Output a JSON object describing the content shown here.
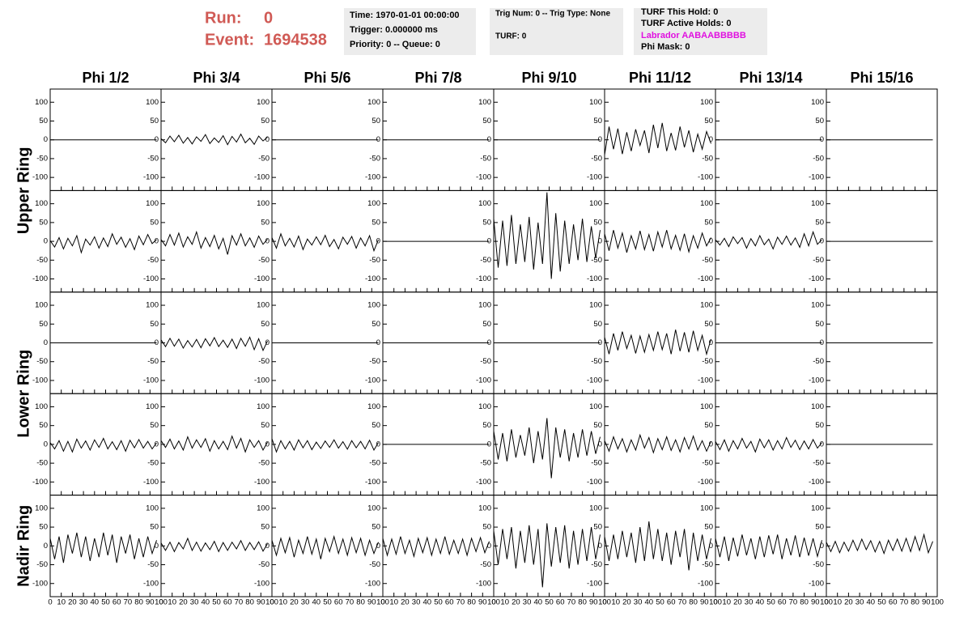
{
  "header": {
    "run_label": "Run:",
    "run": 0,
    "event_label": "Event:",
    "event": 1694538,
    "time": "Time: 1970-01-01 00:00:00",
    "trigger": "Trigger: 0.000000 ms",
    "priority": "Priority: 0 -- Queue: 0",
    "trig": "Trig Num: 0 -- Trig Type: None",
    "turf": "TURF: 0",
    "turf_hold": "TURF This Hold: 0",
    "turf_active": "TURF Active Holds: 0",
    "labrador": "Labrador AABAABBBBB",
    "phi_mask": "Phi Mask: 0"
  },
  "chart_data": {
    "type": "line",
    "columns": [
      "Phi 1/2",
      "Phi 3/4",
      "Phi 5/6",
      "Phi 7/8",
      "Phi 9/10",
      "Phi 11/12",
      "Phi 13/14",
      "Phi 15/16"
    ],
    "ring_labels": [
      "Upper Ring",
      "Lower Ring",
      "Nadir Ring"
    ],
    "color": "#000000",
    "xlim": [
      0,
      100
    ],
    "xticks": [
      0,
      10,
      20,
      30,
      40,
      50,
      60,
      70,
      80,
      90,
      100
    ],
    "ylim": [
      -135,
      135
    ],
    "yticks": [
      -100,
      -50,
      0,
      50,
      100
    ],
    "x": [
      0,
      4,
      8,
      12,
      16,
      20,
      24,
      28,
      32,
      36,
      40,
      44,
      48,
      52,
      56,
      60,
      64,
      68,
      72,
      76,
      80,
      84,
      88,
      92,
      96
    ],
    "panels": [
      [
        [
          0,
          0,
          0,
          0,
          0,
          0,
          0,
          0,
          0,
          0,
          0,
          0,
          0,
          0,
          0,
          0,
          0,
          0,
          0,
          0,
          0,
          0,
          0,
          0,
          0
        ],
        [
          3,
          -8,
          10,
          -5,
          12,
          -9,
          6,
          -11,
          8,
          -4,
          14,
          -10,
          5,
          -7,
          11,
          -13,
          9,
          -6,
          15,
          -8,
          4,
          -12,
          10,
          -3,
          7
        ],
        [
          0,
          0,
          0,
          0,
          0,
          0,
          0,
          0,
          0,
          0,
          0,
          0,
          0,
          0,
          0,
          0,
          0,
          0,
          0,
          0,
          0,
          0,
          0,
          0,
          0
        ],
        [
          0,
          0,
          0,
          0,
          0,
          0,
          0,
          0,
          0,
          0,
          0,
          0,
          0,
          0,
          0,
          0,
          0,
          0,
          0,
          0,
          0,
          0,
          0,
          0,
          0
        ],
        [
          0,
          0,
          0,
          0,
          0,
          0,
          0,
          0,
          0,
          0,
          0,
          0,
          0,
          0,
          0,
          0,
          0,
          0,
          0,
          0,
          0,
          0,
          0,
          0,
          0
        ],
        [
          -40,
          35,
          -25,
          30,
          -38,
          20,
          -30,
          28,
          -15,
          25,
          -35,
          40,
          -22,
          45,
          -30,
          18,
          -28,
          35,
          -20,
          25,
          -33,
          15,
          -25,
          22,
          -10
        ],
        [
          0,
          0,
          0,
          0,
          0,
          0,
          0,
          0,
          0,
          0,
          0,
          0,
          0,
          0,
          0,
          0,
          0,
          0,
          0,
          0,
          0,
          0,
          0,
          0,
          0
        ],
        [
          0,
          0,
          0,
          0,
          0,
          0,
          0,
          0,
          0,
          0,
          0,
          0,
          0,
          0,
          0,
          0,
          0,
          0,
          0,
          0,
          0,
          0,
          0,
          0,
          0
        ]
      ],
      [
        [
          2,
          -15,
          10,
          -20,
          8,
          -12,
          15,
          -30,
          6,
          -10,
          12,
          -18,
          9,
          -14,
          20,
          -8,
          11,
          -16,
          7,
          -22,
          14,
          -9,
          18,
          -6,
          5
        ],
        [
          5,
          -12,
          18,
          -10,
          22,
          -15,
          12,
          -8,
          25,
          -18,
          10,
          -14,
          16,
          -20,
          8,
          -35,
          15,
          -10,
          20,
          -12,
          9,
          -16,
          14,
          -8,
          6
        ],
        [
          10,
          -18,
          20,
          -12,
          8,
          -15,
          14,
          -22,
          6,
          -10,
          12,
          -9,
          16,
          -14,
          5,
          -20,
          11,
          -8,
          13,
          -18,
          9,
          -12,
          15,
          -25,
          4
        ],
        [
          0,
          0,
          0,
          0,
          0,
          0,
          0,
          0,
          0,
          0,
          0,
          0,
          0,
          0,
          0,
          0,
          0,
          0,
          0,
          0,
          0,
          0,
          0,
          0,
          0
        ],
        [
          60,
          -70,
          55,
          -65,
          70,
          -60,
          45,
          -55,
          65,
          -75,
          50,
          -60,
          130,
          -100,
          75,
          -80,
          55,
          -60,
          45,
          -50,
          60,
          -55,
          40,
          -45,
          30
        ],
        [
          20,
          -25,
          30,
          -18,
          22,
          -30,
          15,
          -20,
          28,
          -22,
          18,
          -26,
          25,
          -15,
          30,
          -20,
          16,
          -24,
          20,
          -28,
          15,
          -18,
          22,
          -12,
          10
        ],
        [
          4,
          -10,
          8,
          -14,
          12,
          -6,
          10,
          -18,
          7,
          -12,
          15,
          -9,
          6,
          -20,
          11,
          -8,
          14,
          -10,
          9,
          -16,
          20,
          -12,
          25,
          -8,
          5
        ],
        [
          0,
          0,
          0,
          0,
          0,
          0,
          0,
          0,
          0,
          0,
          0,
          0,
          0,
          0,
          0,
          0,
          0,
          0,
          0,
          0,
          0,
          0,
          0,
          0,
          0
        ]
      ],
      [
        [
          0,
          0,
          0,
          0,
          0,
          0,
          0,
          0,
          0,
          0,
          0,
          0,
          0,
          0,
          0,
          0,
          0,
          0,
          0,
          0,
          0,
          0,
          0,
          0,
          0
        ],
        [
          8,
          -10,
          12,
          -9,
          10,
          -14,
          6,
          -11,
          9,
          -13,
          11,
          -8,
          14,
          -10,
          7,
          -12,
          10,
          -15,
          12,
          -9,
          15,
          -18,
          11,
          -20,
          5
        ],
        [
          0,
          0,
          0,
          0,
          0,
          0,
          0,
          0,
          0,
          0,
          0,
          0,
          0,
          0,
          0,
          0,
          0,
          0,
          0,
          0,
          0,
          0,
          0,
          0,
          0
        ],
        [
          0,
          0,
          0,
          0,
          0,
          0,
          0,
          0,
          0,
          0,
          0,
          0,
          0,
          0,
          0,
          0,
          0,
          0,
          0,
          0,
          0,
          0,
          0,
          0,
          0
        ],
        [
          0,
          0,
          0,
          0,
          0,
          0,
          0,
          0,
          0,
          0,
          0,
          0,
          0,
          0,
          0,
          0,
          0,
          0,
          0,
          0,
          0,
          0,
          0,
          0,
          0
        ],
        [
          15,
          -30,
          25,
          -20,
          30,
          -15,
          20,
          -28,
          18,
          -25,
          22,
          -20,
          30,
          -18,
          25,
          -30,
          35,
          -22,
          28,
          -25,
          32,
          -20,
          20,
          -30,
          10
        ],
        [
          0,
          0,
          0,
          0,
          0,
          0,
          0,
          0,
          0,
          0,
          0,
          0,
          0,
          0,
          0,
          0,
          0,
          0,
          0,
          0,
          0,
          0,
          0,
          0,
          0
        ],
        [
          0,
          0,
          0,
          0,
          0,
          0,
          0,
          0,
          0,
          0,
          0,
          0,
          0,
          0,
          0,
          0,
          0,
          0,
          0,
          0,
          0,
          0,
          0,
          0,
          0
        ]
      ],
      [
        [
          5,
          -12,
          10,
          -18,
          8,
          -20,
          14,
          -10,
          9,
          -15,
          12,
          -8,
          16,
          -12,
          7,
          -14,
          10,
          -18,
          11,
          -9,
          13,
          -10,
          8,
          -12,
          4
        ],
        [
          10,
          -8,
          14,
          -12,
          9,
          -15,
          20,
          -10,
          12,
          -8,
          15,
          -18,
          10,
          -12,
          8,
          -14,
          22,
          -10,
          16,
          -20,
          12,
          -8,
          10,
          -15,
          6
        ],
        [
          15,
          -20,
          10,
          -12,
          8,
          -15,
          12,
          -9,
          10,
          -14,
          6,
          -11,
          9,
          -8,
          12,
          -10,
          7,
          -13,
          10,
          -9,
          8,
          -12,
          11,
          -15,
          5
        ],
        [
          0,
          0,
          0,
          0,
          0,
          0,
          0,
          0,
          0,
          0,
          0,
          0,
          0,
          0,
          0,
          0,
          0,
          0,
          0,
          0,
          0,
          0,
          0,
          0,
          0
        ],
        [
          35,
          -40,
          30,
          -45,
          40,
          -35,
          25,
          -30,
          45,
          -50,
          35,
          -40,
          70,
          -90,
          45,
          -35,
          40,
          -45,
          30,
          -35,
          40,
          -30,
          35,
          -25,
          20
        ],
        [
          10,
          -18,
          20,
          -12,
          15,
          -20,
          12,
          -15,
          25,
          -10,
          18,
          -22,
          15,
          -14,
          20,
          -16,
          12,
          -20,
          18,
          -12,
          22,
          -15,
          10,
          -18,
          8
        ],
        [
          8,
          -14,
          12,
          -18,
          10,
          -12,
          16,
          -10,
          8,
          -20,
          14,
          -9,
          12,
          -15,
          10,
          -12,
          18,
          -8,
          11,
          -14,
          9,
          -12,
          13,
          -10,
          5
        ],
        [
          0,
          0,
          0,
          0,
          0,
          0,
          0,
          0,
          0,
          0,
          0,
          0,
          0,
          0,
          0,
          0,
          0,
          0,
          0,
          0,
          0,
          0,
          0,
          0,
          0
        ]
      ],
      [
        [
          20,
          -35,
          25,
          -45,
          30,
          -20,
          35,
          -30,
          25,
          -40,
          20,
          -30,
          35,
          -25,
          30,
          -45,
          25,
          -20,
          30,
          -35,
          20,
          -30,
          25,
          -20,
          15
        ],
        [
          8,
          -12,
          10,
          -15,
          9,
          -8,
          20,
          -12,
          10,
          -14,
          8,
          -10,
          12,
          -15,
          9,
          -12,
          10,
          -8,
          14,
          -12,
          9,
          -10,
          11,
          -14,
          6
        ],
        [
          15,
          -25,
          20,
          -18,
          22,
          -30,
          15,
          -20,
          25,
          -22,
          18,
          -35,
          20,
          -15,
          25,
          -20,
          18,
          -25,
          22,
          -18,
          20,
          -25,
          15,
          -20,
          10
        ],
        [
          20,
          -25,
          18,
          -22,
          25,
          -20,
          15,
          -28,
          20,
          -18,
          22,
          -25,
          18,
          -20,
          25,
          -22,
          15,
          -20,
          18,
          -25,
          20,
          -15,
          22,
          -18,
          12
        ],
        [
          40,
          -50,
          45,
          -35,
          50,
          -60,
          40,
          -45,
          55,
          -50,
          45,
          -110,
          60,
          -55,
          50,
          -45,
          55,
          -60,
          40,
          -50,
          45,
          -40,
          50,
          -35,
          30
        ],
        [
          25,
          -40,
          30,
          -35,
          40,
          -30,
          35,
          -45,
          50,
          -40,
          65,
          -35,
          45,
          -40,
          35,
          -50,
          40,
          -30,
          45,
          -65,
          35,
          -40,
          30,
          -35,
          20
        ],
        [
          20,
          -30,
          25,
          -40,
          22,
          -28,
          30,
          -25,
          20,
          -35,
          25,
          -30,
          28,
          -22,
          30,
          -35,
          20,
          -25,
          28,
          -30,
          22,
          -26,
          20,
          -28,
          15
        ],
        [
          10,
          -15,
          12,
          -18,
          10,
          -14,
          15,
          -12,
          18,
          -10,
          14,
          -16,
          12,
          -20,
          15,
          -12,
          18,
          -14,
          20,
          -15,
          25,
          -12,
          30,
          -18,
          12
        ]
      ]
    ]
  }
}
